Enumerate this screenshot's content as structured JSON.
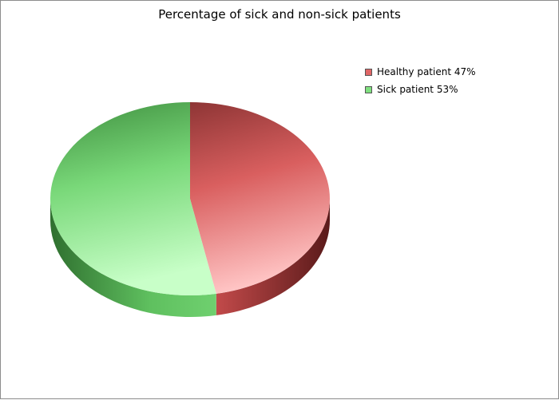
{
  "chart_data": {
    "type": "pie",
    "title": "Percentage of sick and non-sick patients",
    "slices": [
      {
        "label": "Healthy patient",
        "legend": "Healthy patient 47%",
        "value": 47,
        "color": "#e06666"
      },
      {
        "label": "Sick patient",
        "legend": "Sick patient 53%",
        "value": 53,
        "color": "#7fe07f"
      }
    ],
    "legend_position": "right",
    "three_d": true
  }
}
